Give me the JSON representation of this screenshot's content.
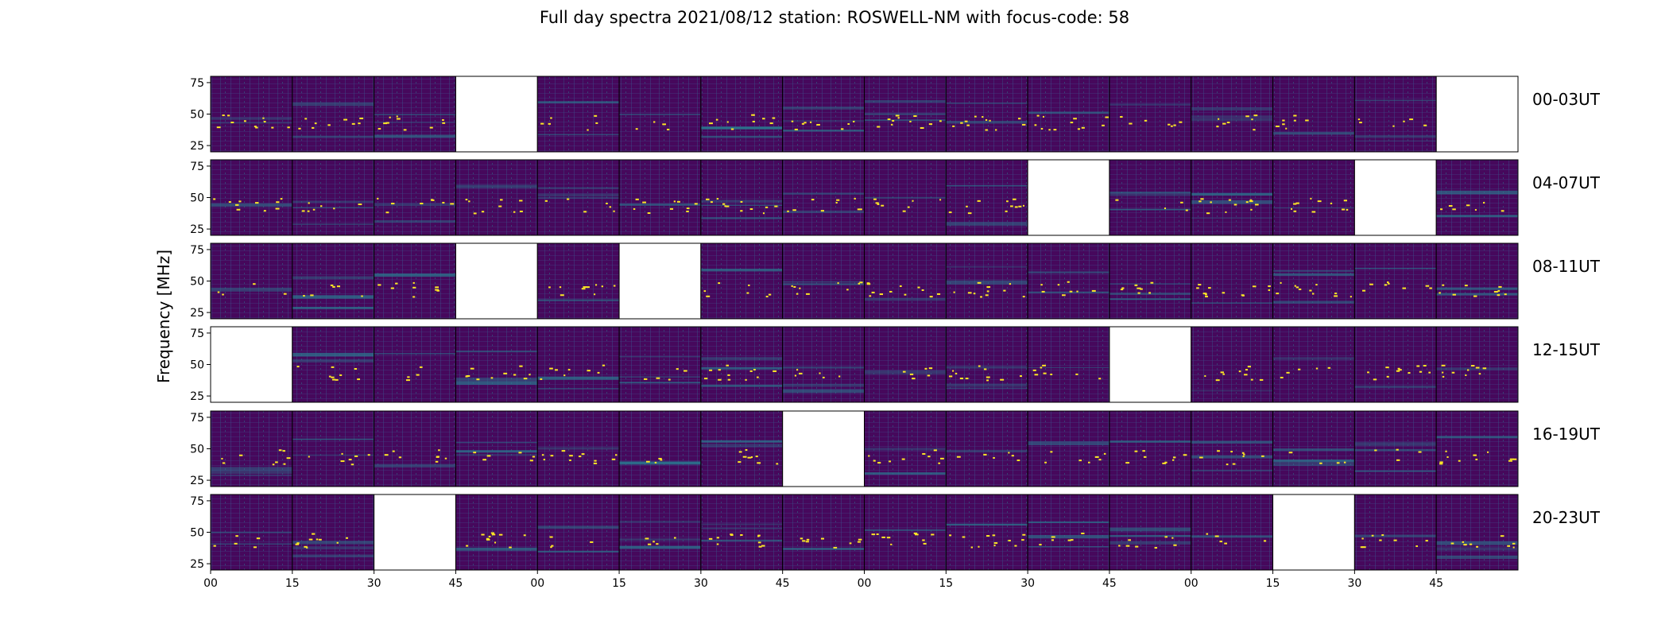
{
  "chart_data": {
    "type": "heatmap",
    "title": "Full day spectra 2021/08/12 station: ROSWELL-NM with focus-code: 58",
    "ylabel": "Frequency [MHz]",
    "ylim": [
      20,
      80
    ],
    "yticks": [
      25,
      50,
      75
    ],
    "xticks": [
      "00",
      "15",
      "30",
      "45",
      "00",
      "15",
      "30",
      "45",
      "00",
      "15",
      "30",
      "45",
      "00",
      "15",
      "30",
      "45"
    ],
    "colormap": {
      "low": "#46085c",
      "mid": "#2a788e",
      "high": "#fde725"
    },
    "rows": [
      {
        "label": "00-03UT",
        "panels": [
          1,
          1,
          1,
          0,
          1,
          1,
          1,
          1,
          1,
          1,
          1,
          1,
          1,
          1,
          1,
          0
        ]
      },
      {
        "label": "04-07UT",
        "panels": [
          1,
          1,
          1,
          1,
          1,
          1,
          1,
          1,
          1,
          1,
          0,
          1,
          1,
          1,
          0,
          1
        ]
      },
      {
        "label": "08-11UT",
        "panels": [
          1,
          1,
          1,
          0,
          1,
          0,
          1,
          1,
          1,
          1,
          1,
          1,
          1,
          1,
          1,
          1
        ]
      },
      {
        "label": "12-15UT",
        "panels": [
          0,
          1,
          1,
          1,
          1,
          1,
          1,
          1,
          1,
          1,
          1,
          0,
          1,
          1,
          1,
          1
        ]
      },
      {
        "label": "16-19UT",
        "panels": [
          1,
          1,
          1,
          1,
          1,
          1,
          1,
          0,
          1,
          1,
          1,
          1,
          1,
          1,
          1,
          1
        ]
      },
      {
        "label": "20-23UT",
        "panels": [
          1,
          1,
          0,
          1,
          1,
          1,
          1,
          1,
          1,
          1,
          1,
          1,
          1,
          0,
          1,
          1
        ]
      }
    ]
  }
}
